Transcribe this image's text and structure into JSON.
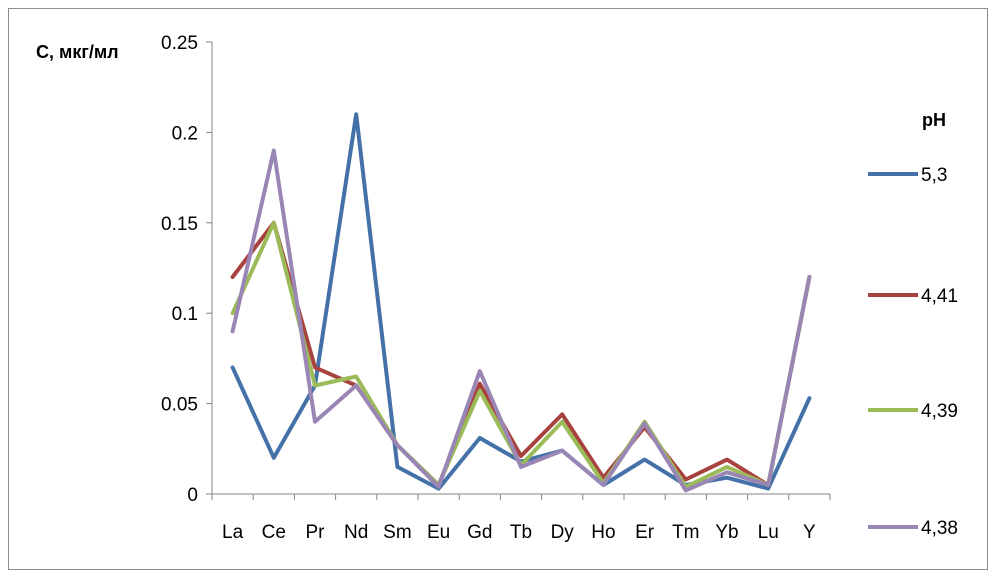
{
  "chart_data": {
    "type": "line",
    "ylabel": "С, мкг/мл",
    "ylim": [
      0,
      0.25
    ],
    "yticks": [
      "0",
      "0.05",
      "0.1",
      "0.15",
      "0.2",
      "0.25"
    ],
    "categories": [
      "La",
      "Ce",
      "Pr",
      "Nd",
      "Sm",
      "Eu",
      "Gd",
      "Tb",
      "Dy",
      "Ho",
      "Er",
      "Tm",
      "Yb",
      "Lu",
      "Y"
    ],
    "legend_title": "pH",
    "legend_position": "right",
    "grid": false,
    "series": [
      {
        "name": "5,3",
        "color": "#4472a8",
        "values": [
          0.07,
          0.02,
          0.06,
          0.21,
          0.015,
          0.003,
          0.031,
          0.018,
          0.024,
          0.005,
          0.019,
          0.005,
          0.009,
          0.003,
          0.053
        ]
      },
      {
        "name": "4,41",
        "color": "#a8423f",
        "values": [
          0.12,
          0.15,
          0.07,
          0.06,
          0.027,
          0.005,
          0.061,
          0.021,
          0.044,
          0.009,
          0.037,
          0.008,
          0.019,
          0.005,
          0.12
        ]
      },
      {
        "name": "4,39",
        "color": "#9bbb59",
        "values": [
          0.1,
          0.15,
          0.06,
          0.065,
          0.027,
          0.005,
          0.057,
          0.016,
          0.04,
          0.006,
          0.04,
          0.004,
          0.015,
          0.005,
          0.12
        ]
      },
      {
        "name": "4,38",
        "color": "#9a86b4",
        "values": [
          0.09,
          0.19,
          0.04,
          0.06,
          0.027,
          0.004,
          0.068,
          0.015,
          0.024,
          0.005,
          0.039,
          0.002,
          0.012,
          0.005,
          0.12
        ]
      }
    ]
  }
}
